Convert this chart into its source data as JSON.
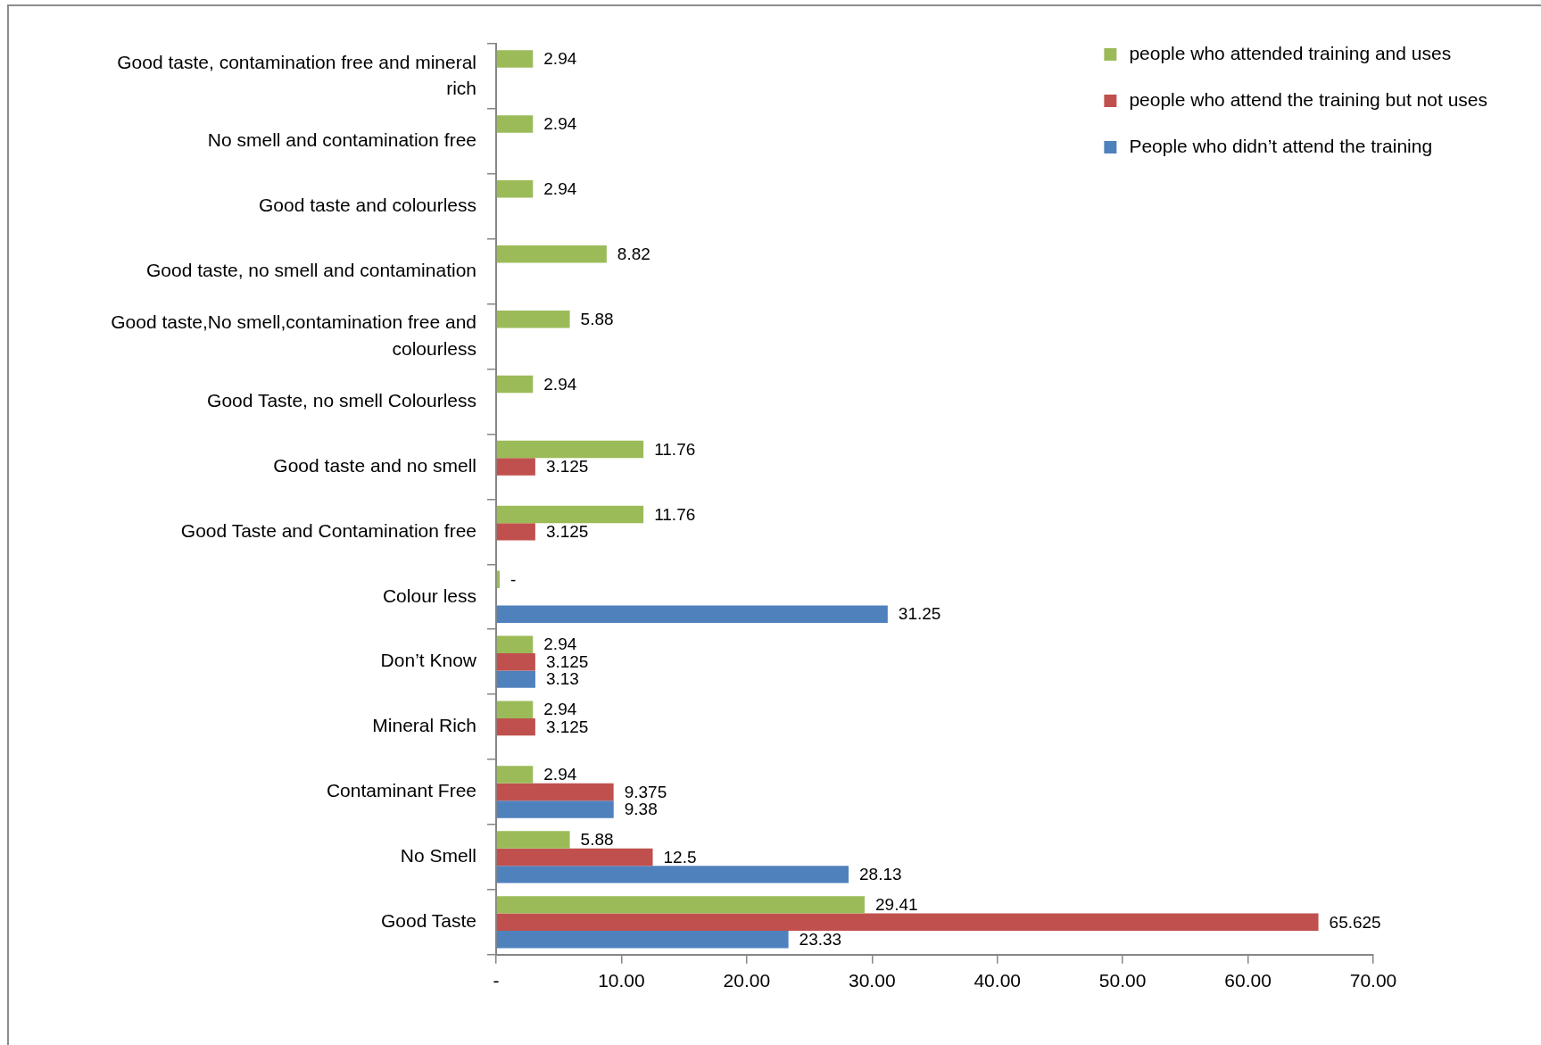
{
  "chart_data": {
    "type": "bar",
    "orientation": "horizontal",
    "categories": [
      "Good taste, contamination free and mineral rich",
      "No smell and contamination free",
      "Good taste and colourless",
      "Good taste, no smell and contamination",
      "Good taste,No smell,contamination free and colourless",
      "Good Taste, no smell Colourless",
      "Good taste and no smell",
      "Good Taste and Contamination free",
      "Colour less",
      "Don’t Know",
      "Mineral Rich",
      "Contaminant Free",
      "No Smell",
      "Good Taste"
    ],
    "series": [
      {
        "name": "people who attended training and uses",
        "color": "#9bbb59",
        "values": [
          2.94,
          2.94,
          2.94,
          8.82,
          5.88,
          2.94,
          11.76,
          11.76,
          0,
          2.94,
          2.94,
          2.94,
          5.88,
          29.41
        ],
        "value_labels": [
          "2.94",
          "2.94",
          "2.94",
          "8.82",
          "5.88",
          "2.94",
          "11.76",
          "11.76",
          "-",
          "2.94",
          "2.94",
          "2.94",
          "5.88",
          "29.41"
        ]
      },
      {
        "name": "people who attend the training but not uses",
        "color": "#c0504d",
        "values": [
          null,
          null,
          null,
          null,
          null,
          null,
          3.125,
          3.125,
          null,
          3.125,
          3.125,
          9.375,
          12.5,
          65.625
        ],
        "value_labels": [
          null,
          null,
          null,
          null,
          null,
          null,
          "3.125",
          "3.125",
          null,
          "3.125",
          "3.125",
          "9.375",
          "12.5",
          "65.625"
        ]
      },
      {
        "name": "People who didn’t attend the training",
        "color": "#4f81bd",
        "values": [
          null,
          null,
          null,
          null,
          null,
          null,
          null,
          null,
          31.25,
          3.13,
          null,
          9.38,
          28.13,
          23.33
        ],
        "value_labels": [
          null,
          null,
          null,
          null,
          null,
          null,
          null,
          null,
          "31.25",
          "3.13",
          null,
          "9.38",
          "28.13",
          "23.33"
        ]
      }
    ],
    "xlim": [
      0,
      70
    ],
    "xticks": [
      {
        "value": 0,
        "label": "-"
      },
      {
        "value": 10,
        "label": "10.00"
      },
      {
        "value": 20,
        "label": "20.00"
      },
      {
        "value": 30,
        "label": "30.00"
      },
      {
        "value": 40,
        "label": "40.00"
      },
      {
        "value": 50,
        "label": "50.00"
      },
      {
        "value": 60,
        "label": "60.00"
      },
      {
        "value": 70,
        "label": "70.00"
      }
    ],
    "legend": "top right"
  }
}
